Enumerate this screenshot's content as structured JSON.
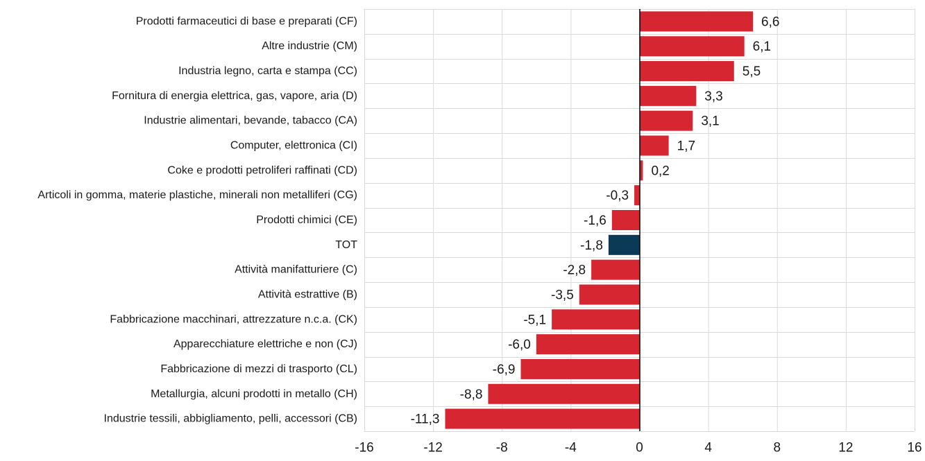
{
  "chart_data": {
    "type": "bar",
    "orientation": "horizontal",
    "categories": [
      "Prodotti farmaceutici di base e preparati (CF)",
      "Altre industrie (CM)",
      "Industria legno, carta e stampa (CC)",
      "Fornitura di energia elettrica, gas, vapore, aria (D)",
      "Industrie alimentari, bevande, tabacco (CA)",
      "Computer, elettronica (CI)",
      "Coke e prodotti petroliferi raffinati (CD)",
      "Articoli in gomma, materie plastiche, minerali non metalliferi (CG)",
      "Prodotti chimici (CE)",
      "TOT",
      "Attività manifatturiere (C)",
      "Attività estrattive (B)",
      "Fabbricazione macchinari, attrezzature n.c.a. (CK)",
      "Apparecchiature elettriche e non (CJ)",
      "Fabbricazione di mezzi di trasporto (CL)",
      "Metallurgia, alcuni prodotti in metallo (CH)",
      "Industrie tessili, abbigliamento, pelli, accessori (CB)"
    ],
    "values": [
      6.6,
      6.1,
      5.5,
      3.3,
      3.1,
      1.7,
      0.2,
      -0.3,
      -1.6,
      -1.8,
      -2.8,
      -3.5,
      -5.1,
      -6.0,
      -6.9,
      -8.8,
      -11.3
    ],
    "value_labels": [
      "6,6",
      "6,1",
      "5,5",
      "3,3",
      "3,1",
      "1,7",
      "0,2",
      "-0,3",
      "-1,6",
      "-1,8",
      "-2,8",
      "-3,5",
      "-5,1",
      "-6,0",
      "-6,9",
      "-8,8",
      "-11,3"
    ],
    "highlight_category": "TOT",
    "xlim": [
      -16,
      16
    ],
    "xticks": [
      -16,
      -12,
      -8,
      -4,
      0,
      4,
      8,
      12,
      16
    ],
    "title": "",
    "xlabel": "",
    "ylabel": "",
    "grid": true,
    "legend": "none",
    "colors": {
      "bar": "#d62632",
      "highlight": "#0b3a57",
      "grid": "#d9d9d9",
      "zero_line": "#000000",
      "text": "#1a1a1a"
    }
  }
}
